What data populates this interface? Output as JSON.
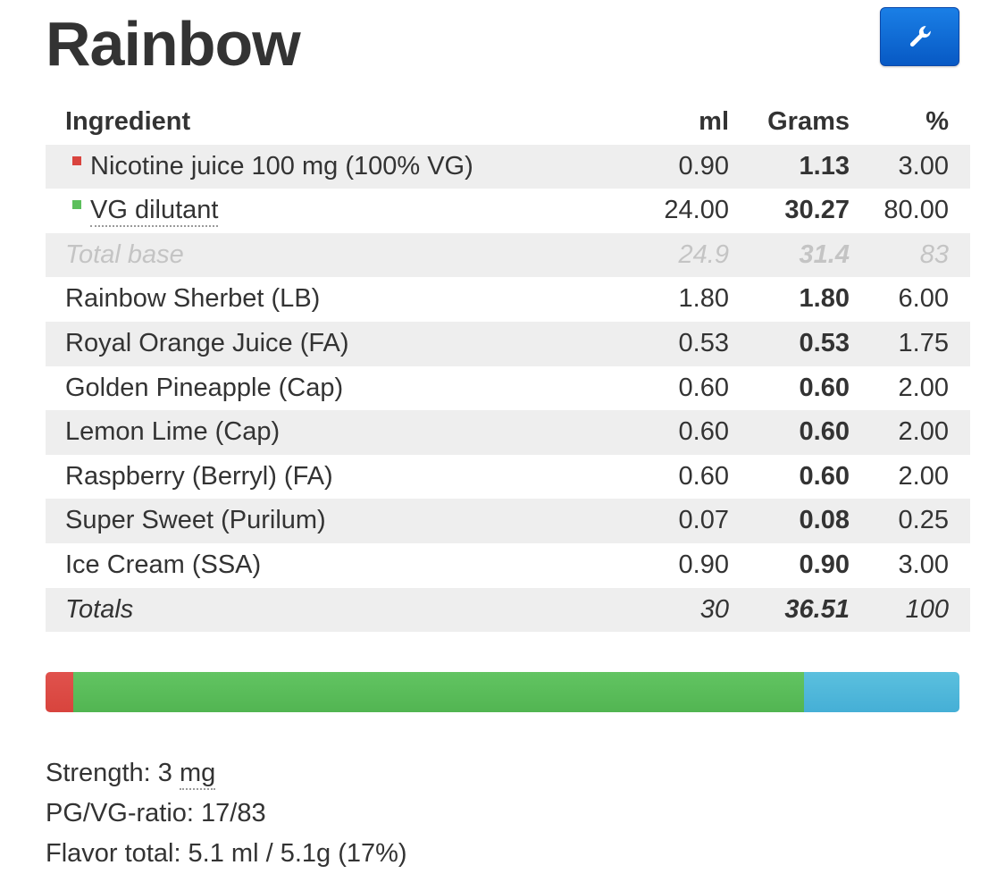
{
  "recipe": {
    "title": "Rainbow",
    "settings_icon": "wrench-icon"
  },
  "table": {
    "headers": {
      "ingredient": "Ingredient",
      "ml": "ml",
      "grams": "Grams",
      "pct": "%"
    },
    "rows": [
      {
        "name": "Nicotine juice 100 mg (100% VG)",
        "ml": "0.90",
        "grams": "1.13",
        "pct": "3.00",
        "swatch": "#d9443e"
      },
      {
        "name": "VG dilutant",
        "ml": "24.00",
        "grams": "30.27",
        "pct": "80.00",
        "swatch": "#5cbf5c"
      },
      {
        "name": "Total base",
        "ml": "24.9",
        "grams": "31.4",
        "pct": "83"
      },
      {
        "name": "Rainbow Sherbet (LB)",
        "ml": "1.80",
        "grams": "1.80",
        "pct": "6.00"
      },
      {
        "name": "Royal Orange Juice (FA)",
        "ml": "0.53",
        "grams": "0.53",
        "pct": "1.75"
      },
      {
        "name": "Golden Pineapple (Cap)",
        "ml": "0.60",
        "grams": "0.60",
        "pct": "2.00"
      },
      {
        "name": "Lemon Lime (Cap)",
        "ml": "0.60",
        "grams": "0.60",
        "pct": "2.00"
      },
      {
        "name": "Raspberry (Berryl) (FA)",
        "ml": "0.60",
        "grams": "0.60",
        "pct": "2.00"
      },
      {
        "name": "Super Sweet (Purilum)",
        "ml": "0.07",
        "grams": "0.08",
        "pct": "0.25"
      },
      {
        "name": "Ice Cream (SSA)",
        "ml": "0.90",
        "grams": "0.90",
        "pct": "3.00"
      },
      {
        "name": "Totals",
        "ml": "30",
        "grams": "36.51",
        "pct": "100"
      }
    ]
  },
  "ratio_bar": {
    "segments": [
      {
        "name": "nicotine",
        "percent": 3,
        "color": "#d9443e"
      },
      {
        "name": "vg",
        "percent": 80,
        "color": "#5cbf5c"
      },
      {
        "name": "pg",
        "percent": 17,
        "color": "#5bc0de"
      }
    ]
  },
  "stats": {
    "strength_label": "Strength: 3 ",
    "strength_unit": "mg",
    "pgvg": "PG/VG-ratio: 17/83",
    "flavor_total": "Flavor total: 5.1 ml / 5.1g (17%)"
  }
}
